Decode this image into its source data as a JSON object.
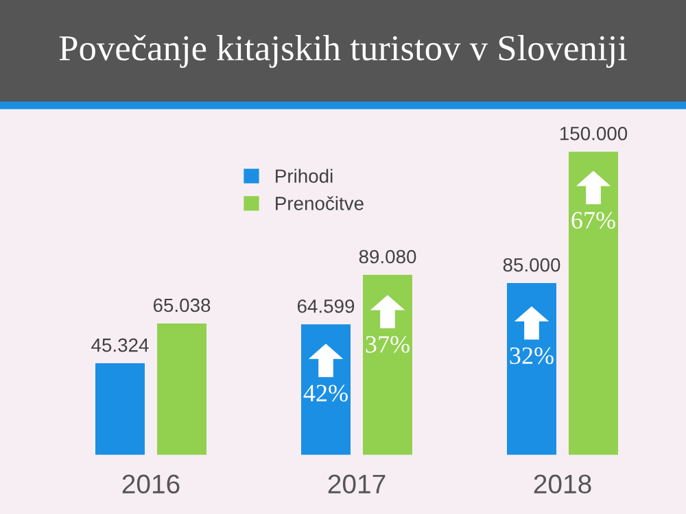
{
  "chart_data": {
    "type": "bar",
    "title": "Povečanje kitajskih turistov v Sloveniji",
    "categories": [
      "2016",
      "2017",
      "2018"
    ],
    "series": [
      {
        "name": "Prihodi",
        "color": "#1b8fe3",
        "values": [
          45324,
          64599,
          85000
        ],
        "value_labels": [
          "45.324",
          "64.599",
          "85.000"
        ]
      },
      {
        "name": "Prenočitve",
        "color": "#92d050",
        "values": [
          65038,
          89080,
          150000
        ],
        "value_labels": [
          "65.038",
          "89.080",
          "150.000"
        ]
      }
    ],
    "annotations": [
      {
        "text": "42%",
        "x": "2017",
        "y": 29500
      },
      {
        "text": "37%",
        "x": "2017",
        "y": 53600
      },
      {
        "text": "32%",
        "x": "2018",
        "y": 48000
      },
      {
        "text": "67%",
        "x": "2018",
        "y": 115000
      }
    ],
    "ylim": [
      0,
      150000
    ],
    "legend": "top",
    "grid": false
  }
}
